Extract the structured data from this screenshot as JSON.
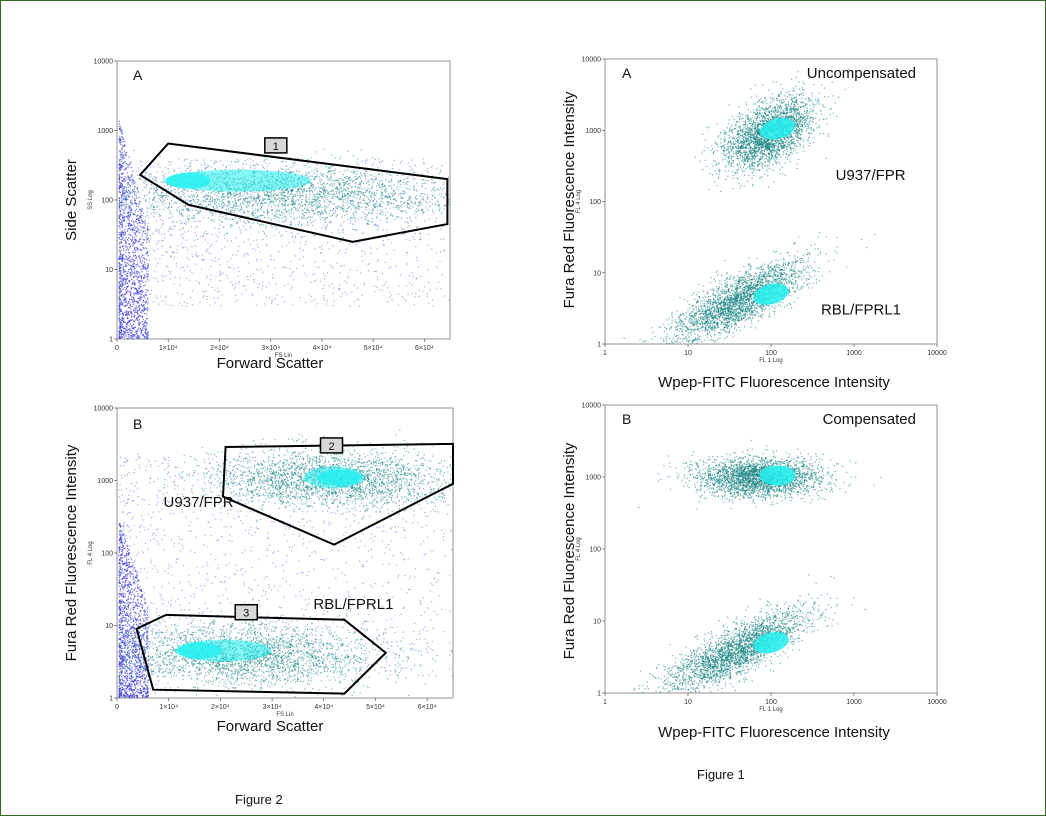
{
  "figure_captions": {
    "left": "Figure 2",
    "right": "Figure 1"
  },
  "colors": {
    "frame": "#2f6b1f",
    "blue_dots": "#3b3bdc",
    "teal_dots": "#0f7f7f",
    "cyan_core": "#22f0f0",
    "gate_red": "#c00000"
  },
  "chart_data": [
    {
      "type": "scatter",
      "panel": "A",
      "title": "",
      "xlabel": "Forward Scatter",
      "ylabel": "Side Scatter",
      "instrument_xlabel": "FS Lin",
      "instrument_ylabel": "SS Log",
      "xscale": "linear",
      "yscale": "log",
      "xlim": [
        0,
        65000
      ],
      "ylim": [
        1,
        10000
      ],
      "x_ticks": [
        {
          "v": 0,
          "label": "0"
        },
        {
          "v": 10000,
          "label": "1×10⁴"
        },
        {
          "v": 20000,
          "label": "2×10⁴"
        },
        {
          "v": 30000,
          "label": "3×10⁴"
        },
        {
          "v": 40000,
          "label": "4×10⁴"
        },
        {
          "v": 50000,
          "label": "5×10⁴"
        },
        {
          "v": 60000,
          "label": "6×10⁴"
        }
      ],
      "y_ticks": [
        {
          "v": 1,
          "label": "1"
        },
        {
          "v": 10,
          "label": "10"
        },
        {
          "v": 100,
          "label": "100"
        },
        {
          "v": 1000,
          "label": "1000"
        },
        {
          "v": 10000,
          "label": "10000"
        }
      ],
      "populations": [
        {
          "color": "blue",
          "shape": "wedge",
          "x_range": [
            300,
            6000
          ],
          "y_range": [
            1,
            1500
          ]
        },
        {
          "color": "blue",
          "shape": "haze",
          "x_range": [
            0,
            65000
          ],
          "y_range": [
            3,
            400
          ]
        },
        {
          "color": "teal",
          "shape": "ellipse",
          "cx": 33000,
          "cy": 120,
          "sx": 18000,
          "sy_log": 0.22,
          "core_cx": 14000,
          "core_cy": 190
        }
      ],
      "gates": [
        {
          "label": "1",
          "color": "black",
          "points": [
            [
              4500,
              230
            ],
            [
              10000,
              650
            ],
            [
              64500,
              200
            ],
            [
              64500,
              45
            ],
            [
              46000,
              25
            ],
            [
              14000,
              85
            ]
          ],
          "label_at": [
            31000,
            600
          ]
        }
      ],
      "annotations": []
    },
    {
      "type": "scatter",
      "panel": "B",
      "title": "",
      "xlabel": "Forward Scatter",
      "ylabel": "Fura Red Fluorescence Intensity",
      "instrument_xlabel": "FS Lin",
      "instrument_ylabel": "FL 4 Log",
      "xscale": "linear",
      "yscale": "log",
      "xlim": [
        0,
        65000
      ],
      "ylim": [
        1,
        10000
      ],
      "x_ticks": [
        {
          "v": 0,
          "label": "0"
        },
        {
          "v": 10000,
          "label": "1×10⁴"
        },
        {
          "v": 20000,
          "label": "2×10⁴"
        },
        {
          "v": 30000,
          "label": "3×10⁴"
        },
        {
          "v": 40000,
          "label": "4×10⁴"
        },
        {
          "v": 50000,
          "label": "5×10⁴"
        },
        {
          "v": 60000,
          "label": "6×10⁴"
        }
      ],
      "y_ticks": [
        {
          "v": 1,
          "label": "1"
        },
        {
          "v": 10,
          "label": "10"
        },
        {
          "v": 100,
          "label": "100"
        },
        {
          "v": 1000,
          "label": "1000"
        },
        {
          "v": 10000,
          "label": "10000"
        }
      ],
      "populations": [
        {
          "color": "blue",
          "shape": "wedge",
          "x_range": [
            300,
            6000
          ],
          "y_range": [
            1,
            300
          ]
        },
        {
          "color": "blue",
          "shape": "haze",
          "x_range": [
            0,
            65000
          ],
          "y_range": [
            2,
            2500
          ]
        },
        {
          "color": "teal",
          "shape": "ellipse",
          "cx": 41000,
          "cy": 1050,
          "sx": 12000,
          "sy_log": 0.2,
          "core_cx": 43000,
          "core_cy": 1100
        },
        {
          "color": "teal",
          "shape": "ellipse",
          "cx": 25000,
          "cy": 4,
          "sx": 13000,
          "sy_log": 0.22,
          "core_cx": 16000,
          "core_cy": 4.5
        }
      ],
      "gates": [
        {
          "label": "2",
          "color": "black",
          "points": [
            [
              21000,
              2900
            ],
            [
              65000,
              3200
            ],
            [
              65000,
              900
            ],
            [
              42000,
              130
            ],
            [
              20500,
              600
            ]
          ],
          "label_at": [
            41500,
            3000
          ]
        },
        {
          "label": "3",
          "color": "black",
          "points": [
            [
              3800,
              9
            ],
            [
              9500,
              14
            ],
            [
              44000,
              12
            ],
            [
              52000,
              4.2
            ],
            [
              44000,
              1.15
            ],
            [
              7000,
              1.3
            ]
          ],
          "label_at": [
            25000,
            15
          ]
        }
      ],
      "annotations": [
        {
          "text": "U937/FPR",
          "x": 9000,
          "y": 430
        },
        {
          "text": "RBL/FPRL1",
          "x": 38000,
          "y": 17
        }
      ]
    },
    {
      "type": "scatter",
      "panel": "A",
      "title": "Uncompensated",
      "xlabel": "Wpep-FITC Fluorescence Intensity",
      "ylabel": "Fura Red Fluorescence Intensity",
      "instrument_xlabel": "FL 1 Log",
      "instrument_ylabel": "FL 4 Log",
      "xscale": "log",
      "yscale": "log",
      "xlim": [
        1,
        10000
      ],
      "ylim": [
        1,
        10000
      ],
      "x_ticks": [
        {
          "v": 1,
          "label": "1"
        },
        {
          "v": 10,
          "label": "10"
        },
        {
          "v": 100,
          "label": "100"
        },
        {
          "v": 1000,
          "label": "1000"
        },
        {
          "v": 10000,
          "label": "10000"
        }
      ],
      "y_ticks": [
        {
          "v": 1,
          "label": "1"
        },
        {
          "v": 10,
          "label": "10"
        },
        {
          "v": 100,
          "label": "100"
        },
        {
          "v": 1000,
          "label": "1000"
        },
        {
          "v": 10000,
          "label": "10000"
        }
      ],
      "populations": [
        {
          "color": "teal",
          "shape": "logellipse",
          "cx": 90,
          "cy": 900,
          "sxl": 0.28,
          "syl": 0.22,
          "rot": 0.5,
          "core_cx": 120,
          "core_cy": 1050
        },
        {
          "color": "teal",
          "shape": "logellipse",
          "cx": 40,
          "cy": 4,
          "sxl": 0.4,
          "syl": 0.18,
          "rot": 0.55,
          "core_cx": 100,
          "core_cy": 5
        }
      ],
      "gates": [],
      "annotations": [
        {
          "text": "U937/FPR",
          "x": 600,
          "y": 200
        },
        {
          "text": "RBL/FPRL1",
          "x": 400,
          "y": 2.6
        }
      ]
    },
    {
      "type": "scatter",
      "panel": "B",
      "title": "Compensated",
      "xlabel": "Wpep-FITC Fluorescence Intensity",
      "ylabel": "Fura Red Fluorescence Intensity",
      "instrument_xlabel": "FL 1 Log",
      "instrument_ylabel": "FL 4 Log",
      "xscale": "log",
      "yscale": "log",
      "xlim": [
        1,
        10000
      ],
      "ylim": [
        1,
        10000
      ],
      "x_ticks": [
        {
          "v": 1,
          "label": "1"
        },
        {
          "v": 10,
          "label": "10"
        },
        {
          "v": 100,
          "label": "100"
        },
        {
          "v": 1000,
          "label": "1000"
        },
        {
          "v": 10000,
          "label": "10000"
        }
      ],
      "y_ticks": [
        {
          "v": 1,
          "label": "1"
        },
        {
          "v": 10,
          "label": "10"
        },
        {
          "v": 100,
          "label": "100"
        },
        {
          "v": 1000,
          "label": "1000"
        },
        {
          "v": 10000,
          "label": "10000"
        }
      ],
      "populations": [
        {
          "color": "teal",
          "shape": "logellipse",
          "cx": 70,
          "cy": 1000,
          "sxl": 0.38,
          "syl": 0.14,
          "rot": 0.0,
          "core_cx": 120,
          "core_cy": 1050
        },
        {
          "color": "teal",
          "shape": "logellipse",
          "cx": 40,
          "cy": 4,
          "sxl": 0.42,
          "syl": 0.17,
          "rot": 0.55,
          "core_cx": 100,
          "core_cy": 5
        }
      ],
      "gates": [],
      "annotations": []
    }
  ]
}
